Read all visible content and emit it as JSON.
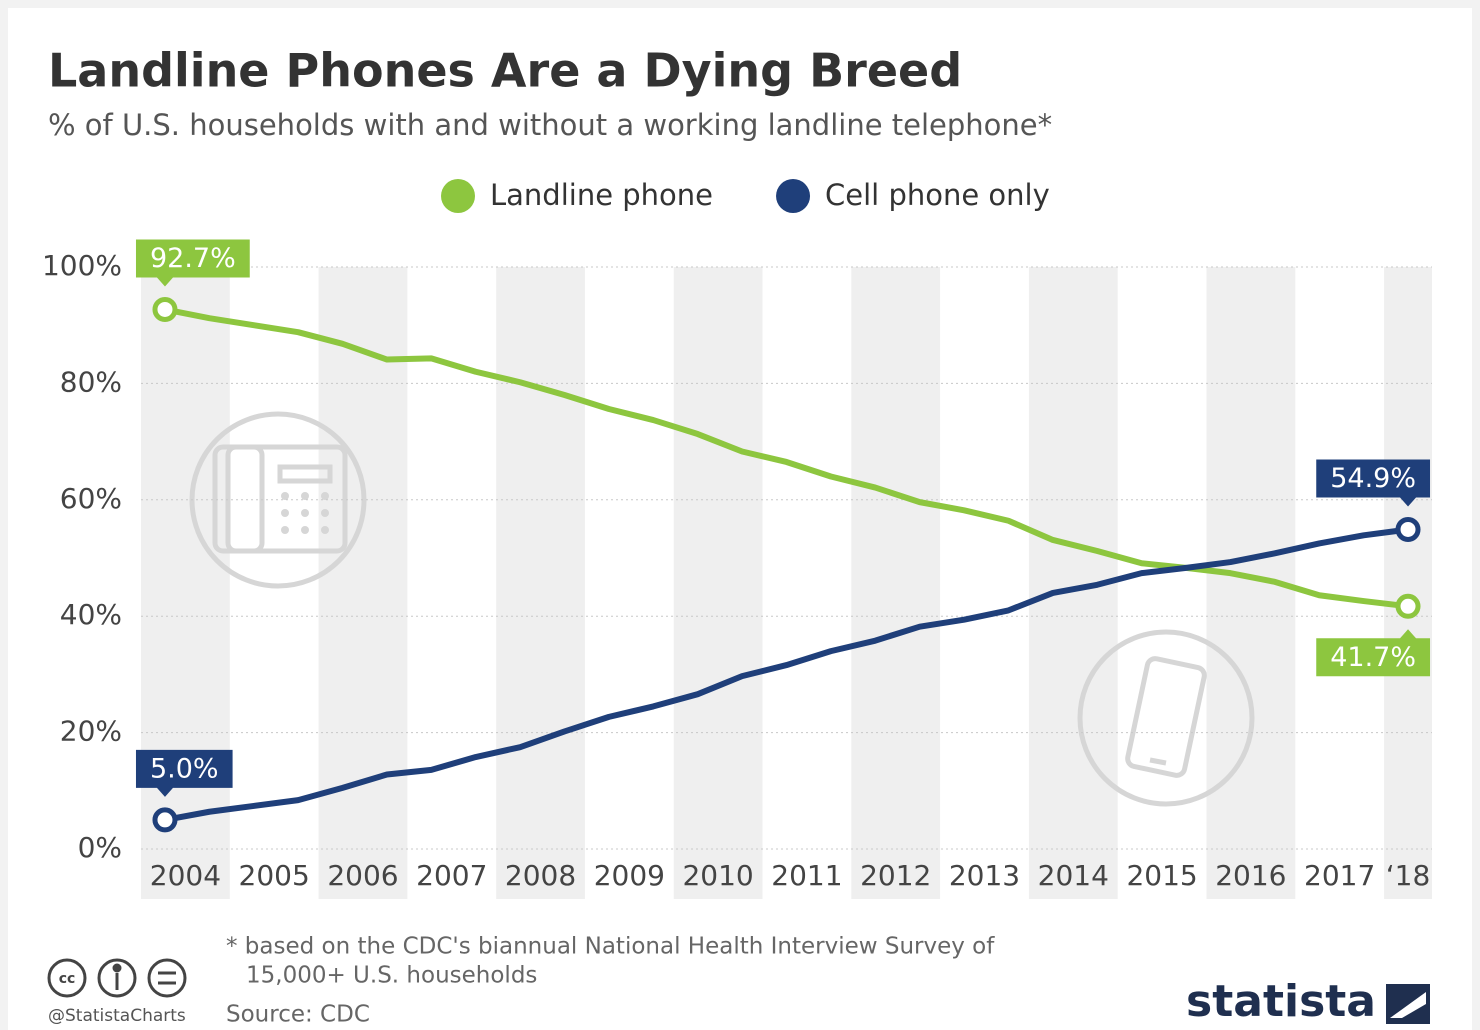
{
  "chart_data": {
    "type": "line",
    "title": "Landline Phones Are a Dying Breed",
    "subtitle": "% of U.S. households with and without a working landline telephone*",
    "x": [
      2004,
      2004.5,
      2005,
      2005.5,
      2006,
      2006.5,
      2007,
      2007.5,
      2008,
      2008.5,
      2009,
      2009.5,
      2010,
      2010.5,
      2011,
      2011.5,
      2012,
      2012.5,
      2013,
      2013.5,
      2014,
      2014.5,
      2015,
      2015.5,
      2016,
      2016.5,
      2017,
      2017.5,
      2018
    ],
    "series": [
      {
        "name": "Landline phone",
        "color": "#8dc63f",
        "values": [
          92.7,
          91.2,
          90.0,
          88.8,
          86.8,
          84.1,
          84.3,
          82.0,
          80.2,
          78.0,
          75.6,
          73.7,
          71.3,
          68.3,
          66.5,
          64.0,
          62.1,
          59.6,
          58.2,
          56.4,
          53.1,
          51.2,
          49.1,
          48.3,
          47.4,
          45.9,
          43.6,
          42.6,
          41.7
        ],
        "value_labels": [
          "92.7%",
          null,
          null,
          null,
          null,
          null,
          null,
          null,
          null,
          null,
          null,
          null,
          null,
          null,
          null,
          null,
          null,
          null,
          null,
          null,
          null,
          null,
          null,
          null,
          null,
          null,
          null,
          null,
          "41.7%"
        ]
      },
      {
        "name": "Cell phone only",
        "color": "#1f3f7a",
        "values": [
          5.0,
          6.4,
          7.4,
          8.4,
          10.5,
          12.8,
          13.6,
          15.8,
          17.5,
          20.2,
          22.7,
          24.5,
          26.6,
          29.7,
          31.6,
          34.0,
          35.8,
          38.2,
          39.4,
          41.0,
          44.0,
          45.4,
          47.4,
          48.3,
          49.3,
          50.8,
          52.5,
          53.9,
          54.9
        ],
        "value_labels": [
          "5.0%",
          null,
          null,
          null,
          null,
          null,
          null,
          null,
          null,
          null,
          null,
          null,
          null,
          null,
          null,
          null,
          null,
          null,
          null,
          null,
          null,
          null,
          null,
          null,
          null,
          null,
          null,
          null,
          "54.9%"
        ]
      }
    ],
    "xlim": [
      2003.73,
      2018.27
    ],
    "xticks": [
      2004,
      2005,
      2006,
      2007,
      2008,
      2009,
      2010,
      2011,
      2012,
      2013,
      2014,
      2015,
      2016,
      2017,
      {
        "value": 2018,
        "label": "‘18"
      }
    ],
    "ylim": [
      0,
      100
    ],
    "yticks": [
      {
        "value": 0,
        "label": "0%"
      },
      {
        "value": 20,
        "label": "20%"
      },
      {
        "value": 40,
        "label": "40%"
      },
      {
        "value": 60,
        "label": "60%"
      },
      {
        "value": 80,
        "label": "80%"
      },
      {
        "value": 100,
        "label": "100%"
      }
    ],
    "grid": true,
    "legend": "top",
    "note": "* based on the CDC's biannual National Health Interview Survey of",
    "note_line2": "15,000+ U.S. households",
    "source": "Source: CDC",
    "handle": "@StatistaCharts",
    "brand": "statista"
  }
}
